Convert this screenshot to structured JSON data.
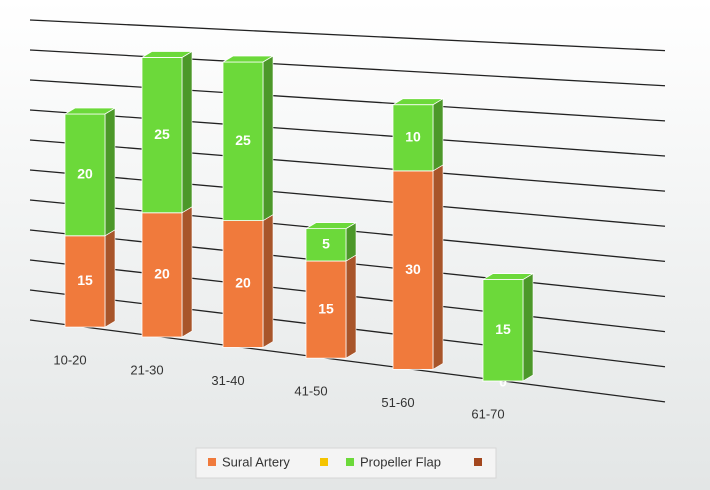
{
  "chart_data": {
    "type": "bar3d_stacked",
    "categories": [
      "10-20",
      "21-30",
      "31-40",
      "41-50",
      "51-60",
      "61-70"
    ],
    "series": [
      {
        "name": "Sural Artery",
        "color": "#f07a3c",
        "values": [
          15,
          20,
          20,
          15,
          30,
          0
        ]
      },
      {
        "name": "Propeller Flap",
        "color": "#6cd93a",
        "values": [
          20,
          25,
          25,
          5,
          10,
          15
        ]
      }
    ],
    "ylim": [
      0,
      50
    ],
    "yticks": [
      0,
      5,
      10,
      15,
      20,
      25,
      30,
      35,
      40,
      45,
      50
    ],
    "grid": true
  }
}
